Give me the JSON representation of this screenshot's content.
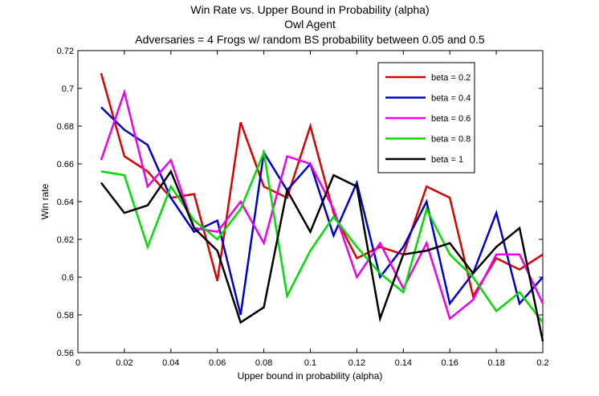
{
  "chart_data": {
    "type": "line",
    "title_lines": [
      "Win Rate vs. Upper Bound in Probability (alpha)",
      "Owl Agent",
      "Adversaries = 4 Frogs w/ random BS probability between 0.05 and 0.5"
    ],
    "xlabel": "Upper bound in probability (alpha)",
    "ylabel": "Win rate",
    "xlim": [
      0,
      0.2
    ],
    "ylim": [
      0.56,
      0.72
    ],
    "x_ticks": [
      "0",
      "0.02",
      "0.04",
      "0.06",
      "0.08",
      "0.1",
      "0.12",
      "0.14",
      "0.16",
      "0.18",
      "0.2"
    ],
    "y_ticks": [
      "0.56",
      "0.58",
      "0.6",
      "0.62",
      "0.64",
      "0.66",
      "0.68",
      "0.7",
      "0.72"
    ],
    "grid": false,
    "legend_position": "top-right",
    "x": [
      0.01,
      0.02,
      0.03,
      0.04,
      0.05,
      0.06,
      0.07,
      0.08,
      0.09,
      0.1,
      0.11,
      0.12,
      0.13,
      0.14,
      0.15,
      0.16,
      0.17,
      0.18,
      0.19,
      0.2
    ],
    "series": [
      {
        "name": "beta = 0.2",
        "color": "#dd0000",
        "values": [
          0.708,
          0.664,
          0.656,
          0.642,
          0.644,
          0.598,
          0.682,
          0.648,
          0.642,
          0.68,
          0.634,
          0.61,
          0.616,
          0.612,
          0.648,
          0.642,
          0.59,
          0.61,
          0.604,
          0.612
        ]
      },
      {
        "name": "beta = 0.4",
        "color": "#0000cc",
        "values": [
          0.69,
          0.678,
          0.67,
          0.642,
          0.624,
          0.63,
          0.58,
          0.666,
          0.646,
          0.66,
          0.622,
          0.65,
          0.6,
          0.616,
          0.64,
          0.586,
          0.602,
          0.634,
          0.586,
          0.6
        ]
      },
      {
        "name": "beta = 0.6",
        "color": "#ee00ee",
        "values": [
          0.662,
          0.698,
          0.648,
          0.662,
          0.626,
          0.624,
          0.64,
          0.618,
          0.664,
          0.66,
          0.636,
          0.6,
          0.618,
          0.594,
          0.618,
          0.578,
          0.588,
          0.612,
          0.612,
          0.586
        ]
      },
      {
        "name": "beta = 0.8",
        "color": "#00dd00",
        "values": [
          0.656,
          0.654,
          0.616,
          0.648,
          0.63,
          0.62,
          0.636,
          0.666,
          0.59,
          0.614,
          0.632,
          0.616,
          0.602,
          0.592,
          0.636,
          0.612,
          0.6,
          0.582,
          0.592,
          0.576
        ]
      },
      {
        "name": "beta = 1",
        "color": "#000000",
        "values": [
          0.65,
          0.634,
          0.638,
          0.656,
          0.626,
          0.614,
          0.576,
          0.584,
          0.646,
          0.624,
          0.654,
          0.648,
          0.578,
          0.612,
          0.614,
          0.618,
          0.602,
          0.616,
          0.626,
          0.566
        ]
      }
    ]
  }
}
